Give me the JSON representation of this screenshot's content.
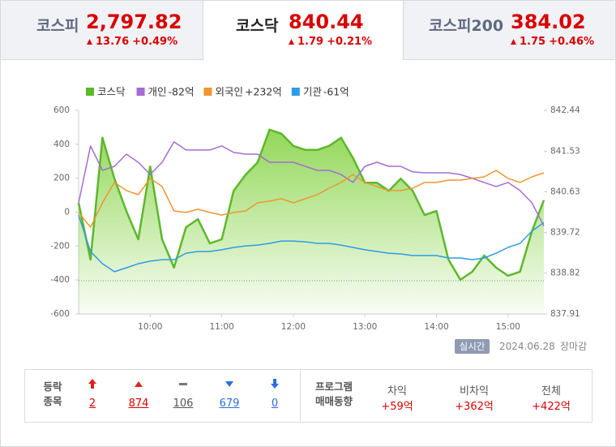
{
  "tabs": [
    {
      "name": "코스피",
      "value": "2,797.82",
      "change": "13.76",
      "change_pct": "+0.49%"
    },
    {
      "name": "코스닥",
      "value": "840.44",
      "change": "1.79",
      "change_pct": "+0.21%"
    },
    {
      "name": "코스피200",
      "value": "384.02",
      "change": "1.75",
      "change_pct": "+0.46%"
    }
  ],
  "chart_data": {
    "type": "line",
    "x": [
      "09:00",
      "09:10",
      "09:20",
      "09:30",
      "09:40",
      "09:50",
      "10:00",
      "10:10",
      "10:20",
      "10:30",
      "10:40",
      "10:50",
      "11:00",
      "11:10",
      "11:20",
      "11:30",
      "11:40",
      "11:50",
      "12:00",
      "12:10",
      "12:20",
      "12:30",
      "12:40",
      "12:50",
      "13:00",
      "13:10",
      "13:20",
      "13:30",
      "13:40",
      "13:50",
      "14:00",
      "14:10",
      "14:20",
      "14:30",
      "14:40",
      "14:50",
      "15:00",
      "15:10",
      "15:20",
      "15:30"
    ],
    "series": [
      {
        "name": "코스닥",
        "color": "#5cb82a",
        "axis": "y2",
        "values": [
          840.38,
          839.12,
          841.83,
          840.92,
          840.2,
          839.57,
          841.19,
          839.57,
          838.94,
          839.84,
          840.02,
          839.48,
          839.57,
          840.65,
          841.01,
          841.28,
          842.01,
          841.92,
          841.65,
          841.56,
          841.56,
          841.65,
          841.83,
          841.38,
          840.83,
          840.83,
          840.65,
          840.92,
          840.65,
          840.11,
          840.2,
          839.12,
          838.67,
          838.85,
          839.21,
          838.94,
          838.76,
          838.85,
          839.75,
          840.44
        ]
      },
      {
        "name": "개인",
        "amount": "-82억",
        "color": "#a66bd3",
        "values": [
          55,
          390,
          246,
          270,
          342,
          294,
          222,
          294,
          414,
          366,
          366,
          366,
          390,
          352,
          342,
          342,
          294,
          294,
          294,
          270,
          246,
          246,
          222,
          175,
          270,
          294,
          270,
          270,
          237,
          232,
          232,
          232,
          222,
          199,
          175,
          151,
          175,
          127,
          55,
          -82
        ]
      },
      {
        "name": "외국인",
        "amount": "+232억",
        "color": "#f0962e",
        "values": [
          -2,
          -89,
          55,
          175,
          127,
          103,
          199,
          151,
          7,
          -2,
          17,
          -2,
          -17,
          -2,
          7,
          55,
          65,
          79,
          55,
          79,
          103,
          141,
          175,
          222,
          175,
          151,
          127,
          127,
          141,
          175,
          175,
          189,
          189,
          199,
          208,
          246,
          199,
          175,
          208,
          232
        ]
      },
      {
        "name": "기관",
        "amount": "-61억",
        "color": "#2e9be6",
        "values": [
          -17,
          -232,
          -304,
          -351,
          -328,
          -304,
          -289,
          -280,
          -280,
          -242,
          -232,
          -232,
          -222,
          -208,
          -199,
          -194,
          -184,
          -170,
          -170,
          -175,
          -184,
          -184,
          -194,
          -208,
          -222,
          -232,
          -242,
          -246,
          -256,
          -256,
          -256,
          -270,
          -270,
          -280,
          -270,
          -242,
          -208,
          -184,
          -112,
          -61
        ]
      }
    ],
    "xlim": [
      "09:00",
      "15:30"
    ],
    "xticks": [
      "10:00",
      "11:00",
      "12:00",
      "13:00",
      "14:00",
      "15:00"
    ],
    "ylim": [
      -600,
      600
    ],
    "yticks": [
      600,
      400,
      200,
      0,
      -200,
      -400,
      -600
    ],
    "y2lim": [
      837.91,
      842.44
    ],
    "y2ticks": [
      842.44,
      841.53,
      840.63,
      839.72,
      838.82,
      837.91
    ],
    "reference_line": 838.65
  },
  "status": {
    "badge": "실시간",
    "date": "2024.06.28",
    "session": "장마감"
  },
  "breadth": {
    "label": [
      "등락",
      "종목"
    ],
    "counts": [
      2,
      874,
      106,
      679,
      0
    ]
  },
  "program": {
    "label": [
      "프로그램",
      "매매동향"
    ],
    "columns": [
      {
        "name": "차익",
        "value": "+59억"
      },
      {
        "name": "비차익",
        "value": "+362억"
      },
      {
        "name": "전체",
        "value": "+422억"
      }
    ]
  }
}
